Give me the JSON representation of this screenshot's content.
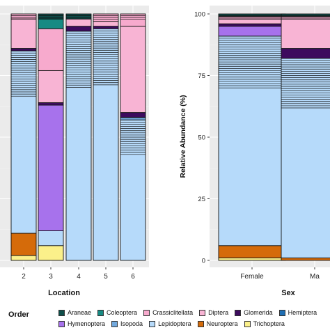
{
  "chart_data": [
    {
      "type": "bar",
      "stacked": true,
      "percent": true,
      "xlabel": "Location",
      "ylabel": "",
      "categories": [
        "2",
        "3",
        "4",
        "5",
        "6"
      ],
      "series": [
        {
          "name": "Trichoptera",
          "values": [
            2,
            6,
            0,
            0,
            0
          ]
        },
        {
          "name": "Neuroptera",
          "values": [
            9,
            0,
            0,
            0,
            0
          ]
        },
        {
          "name": "Lepidoptera",
          "values": [
            74,
            6,
            93,
            94,
            57
          ]
        },
        {
          "name": "Isopoda",
          "values": [
            0,
            0,
            0,
            0,
            1
          ]
        },
        {
          "name": "Hymenoptera",
          "values": [
            0,
            51,
            0,
            0,
            0
          ]
        },
        {
          "name": "Glomerida",
          "values": [
            1,
            1,
            2,
            1,
            2
          ]
        },
        {
          "name": "Diptera",
          "values": [
            12,
            13,
            3,
            2,
            35
          ]
        },
        {
          "name": "Crassiclitellata",
          "values": [
            2,
            17,
            0,
            3,
            5
          ]
        },
        {
          "name": "Coleoptera",
          "values": [
            0,
            4,
            0,
            0,
            0
          ]
        },
        {
          "name": "Araneae",
          "values": [
            0,
            2,
            2,
            0,
            0
          ]
        }
      ]
    },
    {
      "type": "bar",
      "stacked": true,
      "percent": true,
      "xlabel": "Sex",
      "ylabel": "Relative Abundance (%)",
      "ylim": [
        0,
        100
      ],
      "yticks": [
        0,
        25,
        50,
        75,
        100
      ],
      "categories": [
        "Female",
        "Ma"
      ],
      "series": [
        {
          "name": "Trichoptera",
          "values": [
            1,
            0
          ]
        },
        {
          "name": "Neuroptera",
          "values": [
            5,
            1
          ]
        },
        {
          "name": "Lepidoptera",
          "values": [
            85,
            81
          ]
        },
        {
          "name": "Hymenoptera",
          "values": [
            4,
            0
          ]
        },
        {
          "name": "Glomerida",
          "values": [
            1,
            4
          ]
        },
        {
          "name": "Diptera",
          "values": [
            2,
            12
          ]
        },
        {
          "name": "Crassiclitellata",
          "values": [
            1,
            1
          ]
        },
        {
          "name": "Araneae",
          "values": [
            1,
            1
          ]
        }
      ]
    }
  ],
  "colors": {
    "Araneae": "#0f4e4a",
    "Coleoptera": "#178a83",
    "Crassiclitellata": "#f7aacd",
    "Diptera": "#f8b4d4",
    "Glomerida": "#3d0b5e",
    "Hemiptera": "#1f6fb4",
    "Hymenoptera": "#a772ec",
    "Isopoda": "#72a9dd",
    "Lepidoptera": "#b6dafa",
    "Neuroptera": "#d56b0a",
    "Trichoptera": "#fbf08a"
  },
  "legend": {
    "title": "Order",
    "row1": [
      "Araneae",
      "Coleoptera",
      "Crassiclitellata",
      "Diptera",
      "Glomerida",
      "Hemiptera"
    ],
    "row2": [
      "Hymenoptera",
      "Isopoda",
      "Lepidoptera",
      "Neuroptera",
      "Trichoptera"
    ]
  }
}
